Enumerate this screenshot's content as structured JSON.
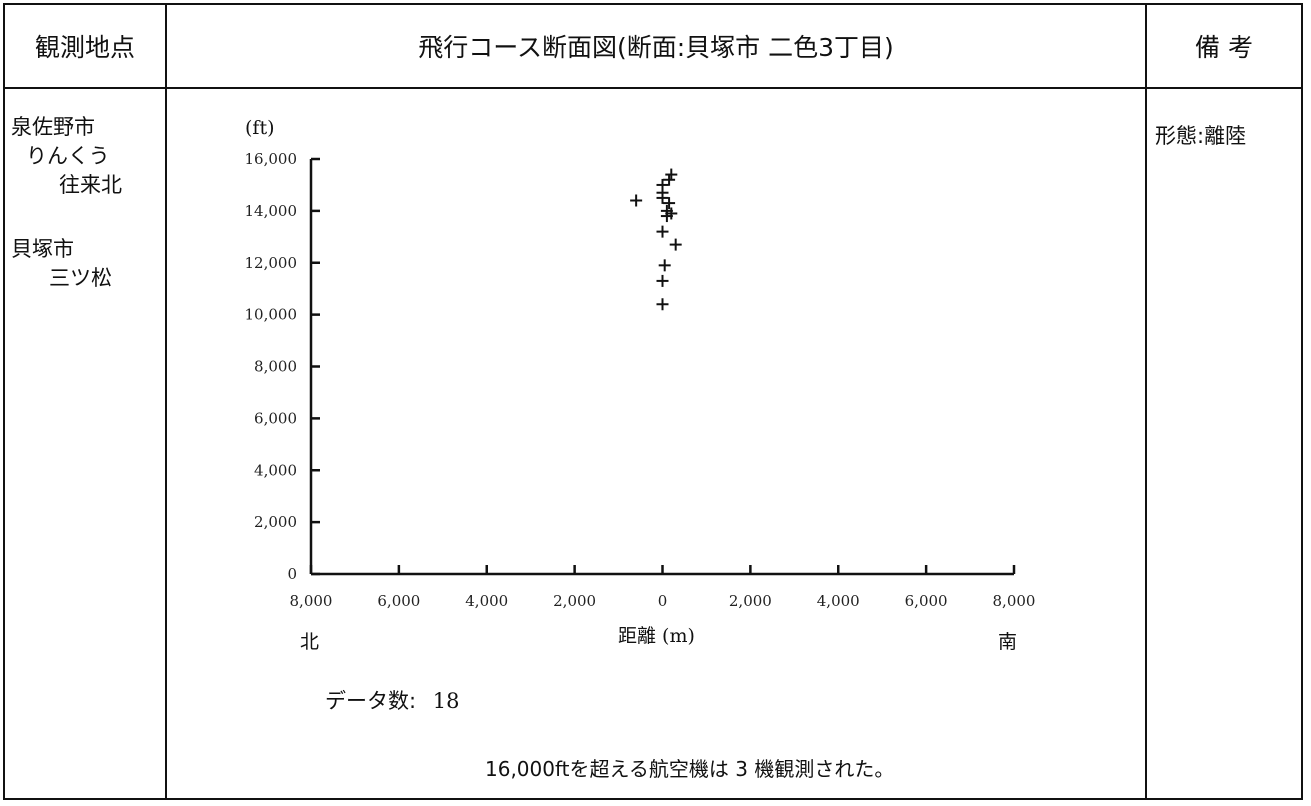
{
  "header": {
    "location_label": "観測地点",
    "chart_title": "飛行コース断面図(断面:貝塚市 二色3丁目)",
    "remarks_label": "備 考"
  },
  "locations": [
    {
      "line1": "泉佐野市",
      "line2": "りんくう",
      "line3": "往来北"
    },
    {
      "line1": "貝塚市",
      "line2": "三ツ松"
    }
  ],
  "remarks": {
    "mode": "形態:離陸"
  },
  "footer": {
    "data_count_label": "データ数:",
    "data_count_value": "18",
    "over_note": "16,000ftを超える航空機は 3 機観測された。"
  },
  "chart_data": {
    "type": "scatter",
    "marker": "+",
    "y_unit": "(ft)",
    "xlabel": "距離 (m)",
    "x_left_label": "北",
    "x_right_label": "南",
    "xlim": [
      -8000,
      8000
    ],
    "ylim": [
      0,
      16000
    ],
    "x_ticks": [
      -8000,
      -6000,
      -4000,
      -2000,
      0,
      2000,
      4000,
      6000,
      8000
    ],
    "x_tick_labels": [
      "8,000",
      "6,000",
      "4,000",
      "2,000",
      "0",
      "2,000",
      "4,000",
      "6,000",
      "8,000"
    ],
    "y_ticks": [
      0,
      2000,
      4000,
      6000,
      8000,
      10000,
      12000,
      14000,
      16000
    ],
    "y_tick_labels": [
      "0",
      "2,000",
      "4,000",
      "6,000",
      "8,000",
      "10,000",
      "12,000",
      "14,000",
      "16,000"
    ],
    "points": [
      {
        "x": 200,
        "y": 15400
      },
      {
        "x": 150,
        "y": 15200
      },
      {
        "x": 0,
        "y": 15000
      },
      {
        "x": 0,
        "y": 14700
      },
      {
        "x": -600,
        "y": 14400
      },
      {
        "x": 0,
        "y": 14500
      },
      {
        "x": 150,
        "y": 14300
      },
      {
        "x": 100,
        "y": 14000
      },
      {
        "x": 200,
        "y": 13900
      },
      {
        "x": 100,
        "y": 13800
      },
      {
        "x": 0,
        "y": 13200
      },
      {
        "x": 300,
        "y": 12700
      },
      {
        "x": 50,
        "y": 11900
      },
      {
        "x": 0,
        "y": 11300
      },
      {
        "x": 0,
        "y": 10400
      }
    ],
    "colors": {
      "axis": "#111111",
      "marker": "#111111",
      "tick_label": "#222222"
    }
  }
}
